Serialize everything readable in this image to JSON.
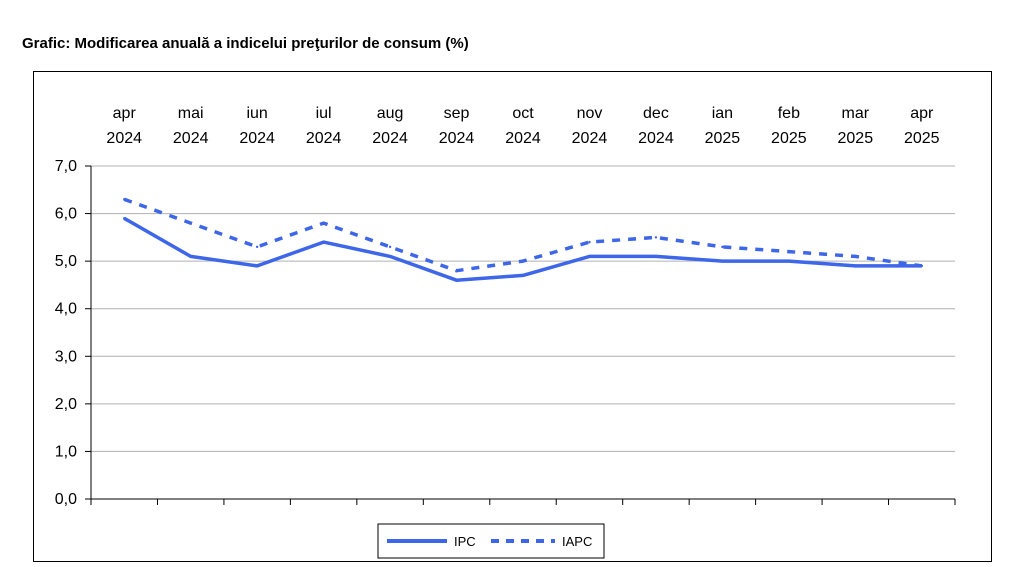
{
  "chart_data": {
    "type": "line",
    "title": "Grafic: Modificarea anuală a indicelui preţurilor de consum (%)",
    "categories": [
      [
        "apr",
        "2024"
      ],
      [
        "mai",
        "2024"
      ],
      [
        "iun",
        "2024"
      ],
      [
        "iul",
        "2024"
      ],
      [
        "aug",
        "2024"
      ],
      [
        "sep",
        "2024"
      ],
      [
        "oct",
        "2024"
      ],
      [
        "nov",
        "2024"
      ],
      [
        "dec",
        "2024"
      ],
      [
        "ian",
        "2025"
      ],
      [
        "feb",
        "2025"
      ],
      [
        "mar",
        "2025"
      ],
      [
        "apr",
        "2025"
      ]
    ],
    "series": [
      {
        "name": "IPC",
        "style": "solid",
        "color": "#3d66e8",
        "values": [
          5.9,
          5.1,
          4.9,
          5.4,
          5.1,
          4.6,
          4.7,
          5.1,
          5.1,
          5.0,
          5.0,
          4.9,
          4.9
        ]
      },
      {
        "name": "IAPC",
        "style": "dashed",
        "color": "#3d66e8",
        "values": [
          6.3,
          5.8,
          5.3,
          5.8,
          5.3,
          4.8,
          5.0,
          5.4,
          5.5,
          5.3,
          5.2,
          5.1,
          4.9
        ]
      }
    ],
    "ylim": [
      0,
      7
    ],
    "yticks": [
      "0,0",
      "1,0",
      "2,0",
      "3,0",
      "4,0",
      "5,0",
      "6,0",
      "7,0"
    ],
    "xaxis_position": "top",
    "grid": true,
    "legend_position": "bottom-center"
  }
}
